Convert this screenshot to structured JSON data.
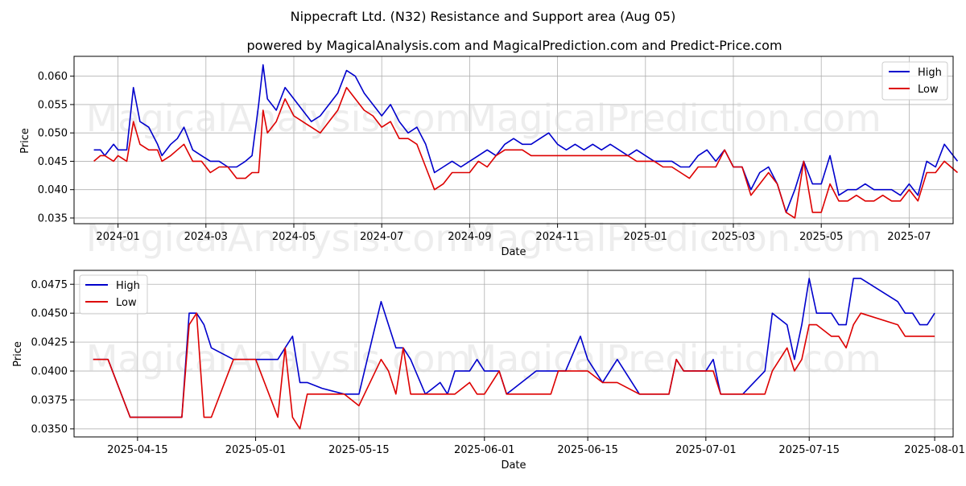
{
  "title": "Nippecraft Ltd. (N32) Resistance and Support area (Aug 05)",
  "subtitle": "powered by MagicalAnalysis.com and MagicalPrediction.com and Predict-Price.com",
  "watermarks": [
    "MagicalAnalysis.com",
    "MagicalPrediction.com"
  ],
  "colors": {
    "high": "#0000cc",
    "low": "#dd0000"
  },
  "chart_data": [
    {
      "type": "line",
      "xlabel": "Date",
      "ylabel": "Price",
      "legend": "top-right",
      "grid": true,
      "xlim": [
        0,
        20
      ],
      "ylim": [
        0.034,
        0.0635
      ],
      "xticks": [
        {
          "v": 1,
          "label": "2024-01"
        },
        {
          "v": 3,
          "label": "2024-03"
        },
        {
          "v": 5,
          "label": "2024-05"
        },
        {
          "v": 7,
          "label": "2024-07"
        },
        {
          "v": 9,
          "label": "2024-09"
        },
        {
          "v": 11,
          "label": "2024-11"
        },
        {
          "v": 13,
          "label": "2025-01"
        },
        {
          "v": 15,
          "label": "2025-03"
        },
        {
          "v": 17,
          "label": "2025-05"
        },
        {
          "v": 19,
          "label": "2025-07"
        }
      ],
      "yticks": [
        {
          "v": 0.035,
          "label": "0.035"
        },
        {
          "v": 0.04,
          "label": "0.040"
        },
        {
          "v": 0.045,
          "label": "0.045"
        },
        {
          "v": 0.05,
          "label": "0.050"
        },
        {
          "v": 0.055,
          "label": "0.055"
        },
        {
          "v": 0.06,
          "label": "0.060"
        }
      ],
      "series": [
        {
          "name": "High",
          "x": [
            0.45,
            0.6,
            0.7,
            0.9,
            1.0,
            1.2,
            1.35,
            1.5,
            1.7,
            1.9,
            2.0,
            2.2,
            2.35,
            2.5,
            2.7,
            2.9,
            3.1,
            3.3,
            3.5,
            3.7,
            3.9,
            4.05,
            4.2,
            4.3,
            4.4,
            4.6,
            4.8,
            5.0,
            5.2,
            5.4,
            5.6,
            5.8,
            6.0,
            6.2,
            6.4,
            6.6,
            6.8,
            7.0,
            7.2,
            7.4,
            7.6,
            7.8,
            8.0,
            8.2,
            8.4,
            8.6,
            8.8,
            9.0,
            9.2,
            9.4,
            9.6,
            9.8,
            10.0,
            10.2,
            10.4,
            10.6,
            10.8,
            11.0,
            11.2,
            11.4,
            11.6,
            11.8,
            12.0,
            12.2,
            12.4,
            12.6,
            12.8,
            13.0,
            13.2,
            13.4,
            13.6,
            13.8,
            14.0,
            14.2,
            14.4,
            14.6,
            14.8,
            15.0,
            15.2,
            15.4,
            15.6,
            15.8,
            16.0,
            16.2,
            16.4,
            16.6,
            16.8,
            17.0,
            17.2,
            17.4,
            17.6,
            17.8,
            18.0,
            18.2,
            18.4,
            18.6,
            18.8,
            19.0,
            19.2,
            19.4,
            19.6,
            19.8,
            20.1
          ],
          "values": [
            0.047,
            0.047,
            0.046,
            0.048,
            0.047,
            0.047,
            0.058,
            0.052,
            0.051,
            0.048,
            0.046,
            0.048,
            0.049,
            0.051,
            0.047,
            0.046,
            0.045,
            0.045,
            0.044,
            0.044,
            0.045,
            0.046,
            0.055,
            0.062,
            0.056,
            0.054,
            0.058,
            0.056,
            0.054,
            0.052,
            0.053,
            0.055,
            0.057,
            0.061,
            0.06,
            0.057,
            0.055,
            0.053,
            0.055,
            0.052,
            0.05,
            0.051,
            0.048,
            0.043,
            0.044,
            0.045,
            0.044,
            0.045,
            0.046,
            0.047,
            0.046,
            0.048,
            0.049,
            0.048,
            0.048,
            0.049,
            0.05,
            0.048,
            0.047,
            0.048,
            0.047,
            0.048,
            0.047,
            0.048,
            0.047,
            0.046,
            0.047,
            0.046,
            0.045,
            0.045,
            0.045,
            0.044,
            0.044,
            0.046,
            0.047,
            0.045,
            0.047,
            0.044,
            0.044,
            0.04,
            0.043,
            0.044,
            0.041,
            0.036,
            0.04,
            0.045,
            0.041,
            0.041,
            0.046,
            0.039,
            0.04,
            0.04,
            0.041,
            0.04,
            0.04,
            0.04,
            0.039,
            0.041,
            0.039,
            0.045,
            0.044,
            0.048,
            0.045
          ]
        },
        {
          "name": "Low",
          "x": [
            0.45,
            0.6,
            0.7,
            0.9,
            1.0,
            1.2,
            1.35,
            1.5,
            1.7,
            1.9,
            2.0,
            2.2,
            2.35,
            2.5,
            2.7,
            2.9,
            3.1,
            3.3,
            3.5,
            3.7,
            3.9,
            4.05,
            4.2,
            4.3,
            4.4,
            4.6,
            4.8,
            5.0,
            5.2,
            5.4,
            5.6,
            5.8,
            6.0,
            6.2,
            6.4,
            6.6,
            6.8,
            7.0,
            7.2,
            7.4,
            7.6,
            7.8,
            8.0,
            8.2,
            8.4,
            8.6,
            8.8,
            9.0,
            9.2,
            9.4,
            9.6,
            9.8,
            10.0,
            10.2,
            10.4,
            10.6,
            10.8,
            11.0,
            11.2,
            11.4,
            11.6,
            11.8,
            12.0,
            12.2,
            12.4,
            12.6,
            12.8,
            13.0,
            13.2,
            13.4,
            13.6,
            13.8,
            14.0,
            14.2,
            14.4,
            14.6,
            14.8,
            15.0,
            15.2,
            15.4,
            15.6,
            15.8,
            16.0,
            16.2,
            16.4,
            16.6,
            16.8,
            17.0,
            17.2,
            17.4,
            17.6,
            17.8,
            18.0,
            18.2,
            18.4,
            18.6,
            18.8,
            19.0,
            19.2,
            19.4,
            19.6,
            19.8,
            20.1
          ],
          "values": [
            0.045,
            0.046,
            0.046,
            0.045,
            0.046,
            0.045,
            0.052,
            0.048,
            0.047,
            0.047,
            0.045,
            0.046,
            0.047,
            0.048,
            0.045,
            0.045,
            0.043,
            0.044,
            0.044,
            0.042,
            0.042,
            0.043,
            0.043,
            0.054,
            0.05,
            0.052,
            0.056,
            0.053,
            0.052,
            0.051,
            0.05,
            0.052,
            0.054,
            0.058,
            0.056,
            0.054,
            0.053,
            0.051,
            0.052,
            0.049,
            0.049,
            0.048,
            0.044,
            0.04,
            0.041,
            0.043,
            0.043,
            0.043,
            0.045,
            0.044,
            0.046,
            0.047,
            0.047,
            0.047,
            0.046,
            0.046,
            0.046,
            0.046,
            0.046,
            0.046,
            0.046,
            0.046,
            0.046,
            0.046,
            0.046,
            0.046,
            0.045,
            0.045,
            0.045,
            0.044,
            0.044,
            0.043,
            0.042,
            0.044,
            0.044,
            0.044,
            0.047,
            0.044,
            0.044,
            0.039,
            0.041,
            0.043,
            0.041,
            0.036,
            0.035,
            0.045,
            0.036,
            0.036,
            0.041,
            0.038,
            0.038,
            0.039,
            0.038,
            0.038,
            0.039,
            0.038,
            0.038,
            0.04,
            0.038,
            0.043,
            0.043,
            0.045,
            0.043
          ]
        }
      ]
    },
    {
      "type": "line",
      "xlabel": "Date",
      "ylabel": "Price",
      "legend": "top-left",
      "grid": true,
      "xlim": [
        -2.6,
        116.5
      ],
      "ylim": [
        0.0343,
        0.0487
      ],
      "xticks": [
        {
          "v": 6,
          "label": "2025-04-15"
        },
        {
          "v": 22,
          "label": "2025-05-01"
        },
        {
          "v": 36,
          "label": "2025-05-15"
        },
        {
          "v": 53,
          "label": "2025-06-01"
        },
        {
          "v": 67,
          "label": "2025-06-15"
        },
        {
          "v": 83,
          "label": "2025-07-01"
        },
        {
          "v": 97,
          "label": "2025-07-15"
        },
        {
          "v": 114,
          "label": "2025-08-01"
        }
      ],
      "yticks": [
        {
          "v": 0.035,
          "label": "0.0350"
        },
        {
          "v": 0.0375,
          "label": "0.0375"
        },
        {
          "v": 0.04,
          "label": "0.0400"
        },
        {
          "v": 0.0425,
          "label": "0.0425"
        },
        {
          "v": 0.045,
          "label": "0.0450"
        },
        {
          "v": 0.0475,
          "label": "0.0475"
        }
      ],
      "series": [
        {
          "name": "High",
          "x": [
            0,
            2,
            5,
            12,
            13,
            14,
            15,
            16,
            19,
            22,
            25,
            26,
            27,
            28,
            29,
            31,
            34,
            36,
            39,
            40,
            41,
            42,
            43,
            45,
            46,
            47,
            48,
            49,
            51,
            52,
            53,
            55,
            56,
            60,
            62,
            63,
            64,
            66,
            67,
            69,
            71,
            74,
            75,
            78,
            79,
            80,
            81,
            83,
            84,
            85,
            86,
            88,
            91,
            92,
            94,
            95,
            96,
            97,
            98,
            100,
            101,
            102,
            103,
            104,
            109,
            110,
            111,
            112,
            113,
            114
          ],
          "values": [
            0.041,
            0.041,
            0.036,
            0.036,
            0.045,
            0.045,
            0.044,
            0.042,
            0.041,
            0.041,
            0.041,
            0.042,
            0.043,
            0.039,
            0.039,
            0.0385,
            0.038,
            0.038,
            0.046,
            0.044,
            0.042,
            0.042,
            0.041,
            0.038,
            0.0385,
            0.039,
            0.038,
            0.04,
            0.04,
            0.041,
            0.04,
            0.04,
            0.038,
            0.04,
            0.04,
            0.04,
            0.04,
            0.043,
            0.041,
            0.039,
            0.041,
            0.038,
            0.038,
            0.038,
            0.041,
            0.04,
            0.04,
            0.04,
            0.041,
            0.038,
            0.038,
            0.038,
            0.04,
            0.045,
            0.044,
            0.041,
            0.044,
            0.048,
            0.045,
            0.045,
            0.044,
            0.044,
            0.048,
            0.048,
            0.046,
            0.045,
            0.045,
            0.044,
            0.044,
            0.045
          ]
        },
        {
          "name": "Low",
          "x": [
            0,
            2,
            5,
            12,
            13,
            14,
            15,
            16,
            19,
            22,
            25,
            26,
            27,
            28,
            29,
            31,
            34,
            36,
            39,
            40,
            41,
            42,
            43,
            45,
            46,
            47,
            48,
            49,
            51,
            52,
            53,
            55,
            56,
            60,
            62,
            63,
            64,
            66,
            67,
            69,
            71,
            74,
            75,
            78,
            79,
            80,
            81,
            83,
            84,
            85,
            86,
            88,
            91,
            92,
            94,
            95,
            96,
            97,
            98,
            100,
            101,
            102,
            103,
            104,
            109,
            110,
            111,
            112,
            113,
            114
          ],
          "values": [
            0.041,
            0.041,
            0.036,
            0.036,
            0.044,
            0.045,
            0.036,
            0.036,
            0.041,
            0.041,
            0.036,
            0.042,
            0.036,
            0.035,
            0.038,
            0.038,
            0.038,
            0.037,
            0.041,
            0.04,
            0.038,
            0.042,
            0.038,
            0.038,
            0.038,
            0.038,
            0.038,
            0.038,
            0.039,
            0.038,
            0.038,
            0.04,
            0.038,
            0.038,
            0.038,
            0.04,
            0.04,
            0.04,
            0.04,
            0.039,
            0.039,
            0.038,
            0.038,
            0.038,
            0.041,
            0.04,
            0.04,
            0.04,
            0.04,
            0.038,
            0.038,
            0.038,
            0.038,
            0.04,
            0.042,
            0.04,
            0.041,
            0.044,
            0.044,
            0.043,
            0.043,
            0.042,
            0.044,
            0.045,
            0.044,
            0.043,
            0.043,
            0.043,
            0.043,
            0.043
          ]
        }
      ]
    }
  ]
}
